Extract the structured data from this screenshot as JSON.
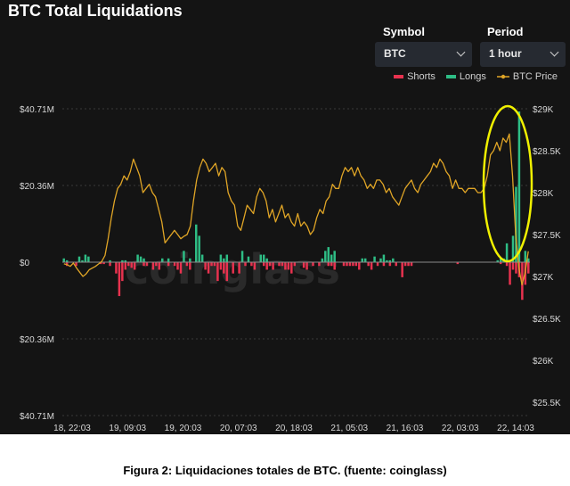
{
  "header": {
    "title": "BTC Total Liquidations"
  },
  "controls": {
    "symbol": {
      "label": "Symbol",
      "value": "BTC"
    },
    "period": {
      "label": "Period",
      "value": "1 hour"
    }
  },
  "legend": {
    "shorts": "Shorts",
    "longs": "Longs",
    "price": "BTC Price"
  },
  "watermark": "coinglass",
  "caption": "Figura 2: Liquidaciones totales de BTC. (fuente: coinglass)",
  "colors": {
    "background": "#141414",
    "shorts": "#e8324f",
    "longs": "#2ebd85",
    "price": "#e0a526",
    "highlight": "#f0f000"
  },
  "chart_data": {
    "type": "bar",
    "title": "BTC Total Liquidations",
    "x_ticks": [
      "18, 22:03",
      "19, 09:03",
      "19, 20:03",
      "20, 07:03",
      "20, 18:03",
      "21, 05:03",
      "21, 16:03",
      "22, 03:03",
      "22, 14:03"
    ],
    "y_left": {
      "ticks": [
        "$40.71M",
        "$20.36M",
        "$0",
        "$20.36M",
        "$40.71M"
      ],
      "values": [
        40.71,
        20.36,
        0,
        -20.36,
        -40.71
      ],
      "range": [
        -40.71,
        40.71
      ]
    },
    "y_right": {
      "ticks": [
        "$29K",
        "$28.5K",
        "$28K",
        "$27.5K",
        "$27K",
        "$26.5K",
        "$26K",
        "$25.5K"
      ],
      "values": [
        29000,
        28500,
        28000,
        27500,
        27000,
        26500,
        26000,
        25500
      ],
      "range": [
        25400,
        29000
      ]
    },
    "series": [
      {
        "name": "Longs",
        "values": [
          1,
          0.5,
          0,
          0,
          0,
          1.5,
          0.5,
          2,
          1.5,
          0,
          0,
          0,
          0,
          0,
          0,
          0.5,
          0,
          0,
          0,
          0.5,
          0.5,
          0,
          0,
          0,
          2,
          1.5,
          1,
          0,
          0,
          0,
          0,
          0,
          1,
          0,
          1,
          0,
          0,
          0,
          0,
          3,
          0,
          1,
          0,
          10,
          7,
          2,
          0,
          0,
          0,
          0,
          0,
          2,
          1,
          2,
          0,
          0,
          0,
          0,
          3,
          0,
          1.5,
          0,
          0,
          0,
          2,
          2,
          1,
          0,
          0,
          0,
          0,
          0,
          0,
          0,
          0,
          0,
          0,
          0,
          0,
          0,
          0,
          0,
          0,
          0,
          1,
          3,
          4,
          2,
          3,
          0,
          0,
          0,
          0,
          0,
          0,
          0,
          0,
          1,
          1,
          0,
          0,
          1.5,
          0,
          1,
          2,
          0.5,
          0.5,
          1,
          0,
          0,
          0,
          0,
          0,
          0,
          0,
          0,
          0,
          0,
          0,
          0,
          0,
          0,
          0,
          0,
          0,
          0,
          0,
          0,
          0,
          0,
          0,
          0,
          0,
          0,
          0,
          0,
          0,
          0,
          0,
          0,
          0,
          0.5,
          1,
          1,
          5,
          0,
          7,
          20,
          40,
          0,
          3,
          1
        ]
      },
      {
        "name": "Shorts",
        "values": [
          0,
          -1,
          0,
          0,
          -1,
          0,
          0,
          0,
          0,
          0,
          0,
          0,
          -0.5,
          -0.5,
          0,
          -1,
          0,
          -3,
          -9,
          -5,
          -2,
          -1,
          -1.5,
          -2,
          0,
          0,
          -1,
          -1,
          0,
          -2,
          -1,
          -2,
          0,
          0,
          -1,
          0,
          -1,
          -2,
          -3,
          0,
          -1,
          -2,
          0,
          0,
          0,
          0,
          -2,
          -3,
          -1,
          -1,
          -5,
          -2,
          -3,
          -5,
          0,
          -3,
          0,
          -3,
          0,
          -1,
          0,
          -1,
          -2,
          0,
          0,
          -1,
          -2,
          -1,
          -2,
          0,
          -1,
          -1,
          -2,
          -2,
          -3,
          -1,
          0,
          0,
          -1.5,
          -2,
          0,
          -1,
          0,
          -1,
          0,
          0,
          -1,
          -1,
          -2,
          0,
          0,
          -1,
          -1,
          -1,
          -1,
          -1,
          -2,
          0,
          0,
          -1,
          -2,
          0,
          -1,
          0,
          -1,
          0,
          -1,
          0,
          -1,
          0,
          -4,
          -1,
          -1,
          -1,
          0,
          0,
          0,
          0,
          0,
          0,
          0,
          0,
          0,
          0,
          0,
          0,
          0,
          0,
          -0.5,
          0,
          0,
          0,
          0,
          0,
          0,
          0,
          0,
          0,
          0,
          0,
          0,
          0,
          -0.5,
          0,
          -1,
          -6,
          -2,
          -3,
          -4,
          -10,
          -6,
          -3
        ]
      },
      {
        "name": "BTC Price",
        "values": [
          27150,
          27140,
          27120,
          27160,
          27100,
          27050,
          27000,
          27030,
          27080,
          27100,
          27120,
          27150,
          27180,
          27250,
          27450,
          27700,
          27900,
          28050,
          28100,
          28200,
          28150,
          28250,
          28400,
          28300,
          28200,
          28000,
          28050,
          28100,
          28000,
          27950,
          27800,
          27650,
          27400,
          27450,
          27500,
          27550,
          27500,
          27450,
          27480,
          27500,
          27600,
          27900,
          28150,
          28300,
          28400,
          28350,
          28250,
          28300,
          28350,
          28200,
          28300,
          28250,
          28000,
          27900,
          27850,
          27600,
          27550,
          27700,
          27850,
          27800,
          27750,
          27950,
          28050,
          28000,
          27900,
          27700,
          27800,
          27650,
          27750,
          27850,
          27700,
          27750,
          27650,
          27600,
          27750,
          27600,
          27650,
          27600,
          27500,
          27550,
          27700,
          27800,
          27750,
          27900,
          27950,
          28100,
          28050,
          28050,
          28200,
          28300,
          28250,
          28300,
          28200,
          28300,
          28200,
          28150,
          28050,
          28100,
          28050,
          28150,
          28150,
          28100,
          28000,
          28050,
          27950,
          27900,
          27850,
          27950,
          28050,
          28100,
          28150,
          28050,
          28000,
          28100,
          28150,
          28200,
          28250,
          28350,
          28300,
          28400,
          28350,
          28250,
          28200,
          28050,
          28150,
          28050,
          28050,
          28000,
          28050,
          28050,
          28050,
          28000,
          28000,
          28050,
          28200,
          28450,
          28500,
          28600,
          28500,
          28650,
          28600,
          28700,
          28200,
          27500,
          27100,
          26900,
          27050,
          27300
        ]
      }
    ],
    "annotation": "yellow ellipse highlighting the spike at the right end",
    "legend_position": "top-right",
    "grid": true
  }
}
